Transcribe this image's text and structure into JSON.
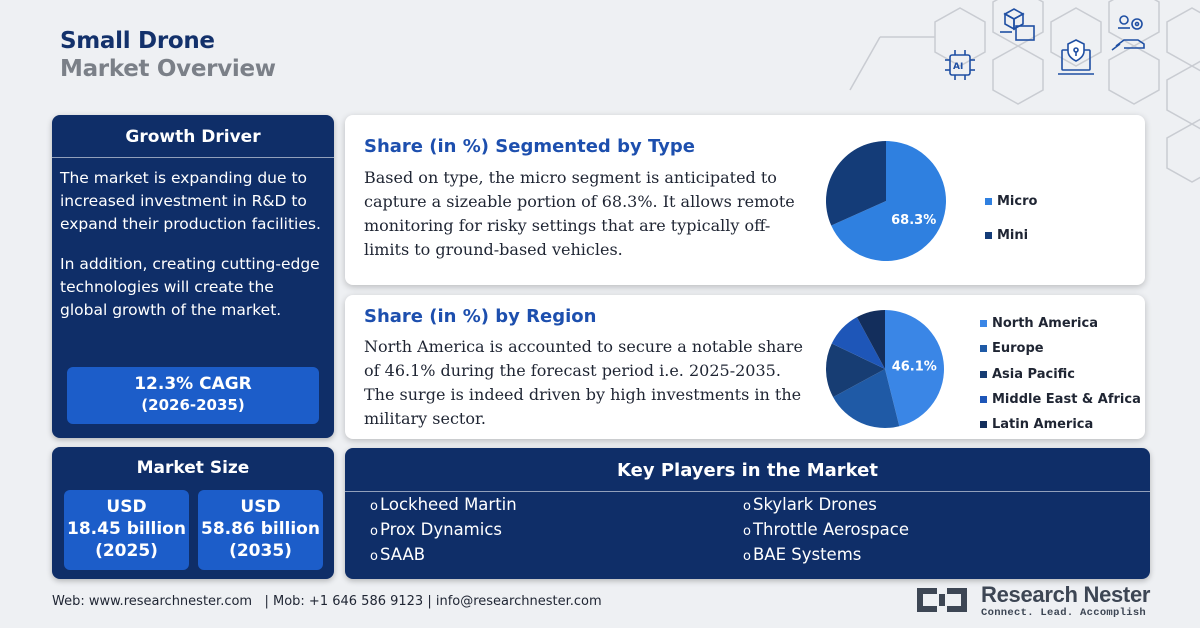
{
  "header": {
    "title_line1": "Small Drone",
    "title_line2": "Market Overview"
  },
  "decor_icons": [
    "ai-chip-icon",
    "cube-diagram-icon",
    "shield-laptop-icon",
    "hand-gears-icon"
  ],
  "growth_driver": {
    "title": "Growth Driver",
    "paragraph1": "The market is expanding due to increased investment in R&D to expand their production facilities.",
    "paragraph2": "In addition, creating cutting-edge technologies will create the global growth of the market.",
    "cagr": "12.3% CAGR",
    "cagr_period": "(2026-2035)"
  },
  "market_size": {
    "title": "Market Size",
    "values": [
      {
        "currency": "USD",
        "amount": "18.45 billion",
        "year": "(2025)"
      },
      {
        "currency": "USD",
        "amount": "58.86 billion",
        "year": "(2035)"
      }
    ]
  },
  "type_share": {
    "title": "Share (in %) Segmented by Type",
    "text": "Based on type, the micro segment is anticipated to capture a sizeable portion of 68.3%. It allows remote monitoring for risky settings that are typically off-limits to ground-based vehicles.",
    "chart_data": {
      "type": "pie",
      "categories": [
        "Micro",
        "Mini"
      ],
      "values": [
        68.3,
        31.7
      ],
      "data_labels": [
        "68.3%",
        ""
      ],
      "colors": [
        "#2f80e0",
        "#143c78"
      ],
      "legend": "right"
    }
  },
  "region_share": {
    "title": "Share (in %) by Region",
    "text": "North America is accounted to secure a notable share of 46.1% during the forecast period i.e. 2025-2035. The surge is indeed driven by high investments in the military sector.",
    "chart_data": {
      "type": "pie",
      "categories": [
        "North America",
        "Europe",
        "Asia Pacific",
        "Middle East & Africa",
        "Latin America"
      ],
      "values": [
        46.1,
        21,
        15,
        10,
        7.9
      ],
      "data_labels": [
        "46.1%",
        "",
        "",
        "",
        ""
      ],
      "colors": [
        "#3a86e6",
        "#1f5aa6",
        "#173d73",
        "#1e56b8",
        "#132e5c"
      ],
      "legend": "right"
    }
  },
  "key_players": {
    "title": "Key Players in the Market",
    "bullet": "o",
    "left": [
      "Lockheed Martin",
      "Prox Dynamics",
      "SAAB"
    ],
    "right": [
      "Skylark Drones",
      "Throttle Aerospace",
      "BAE Systems"
    ]
  },
  "footer": {
    "text": "Web: www.researchnester.com   | Mob: +1 646 586 9123 | info@researchnester.com"
  },
  "logo": {
    "name": "Research Nester",
    "tagline": "Connect. Lead. Accomplish"
  }
}
